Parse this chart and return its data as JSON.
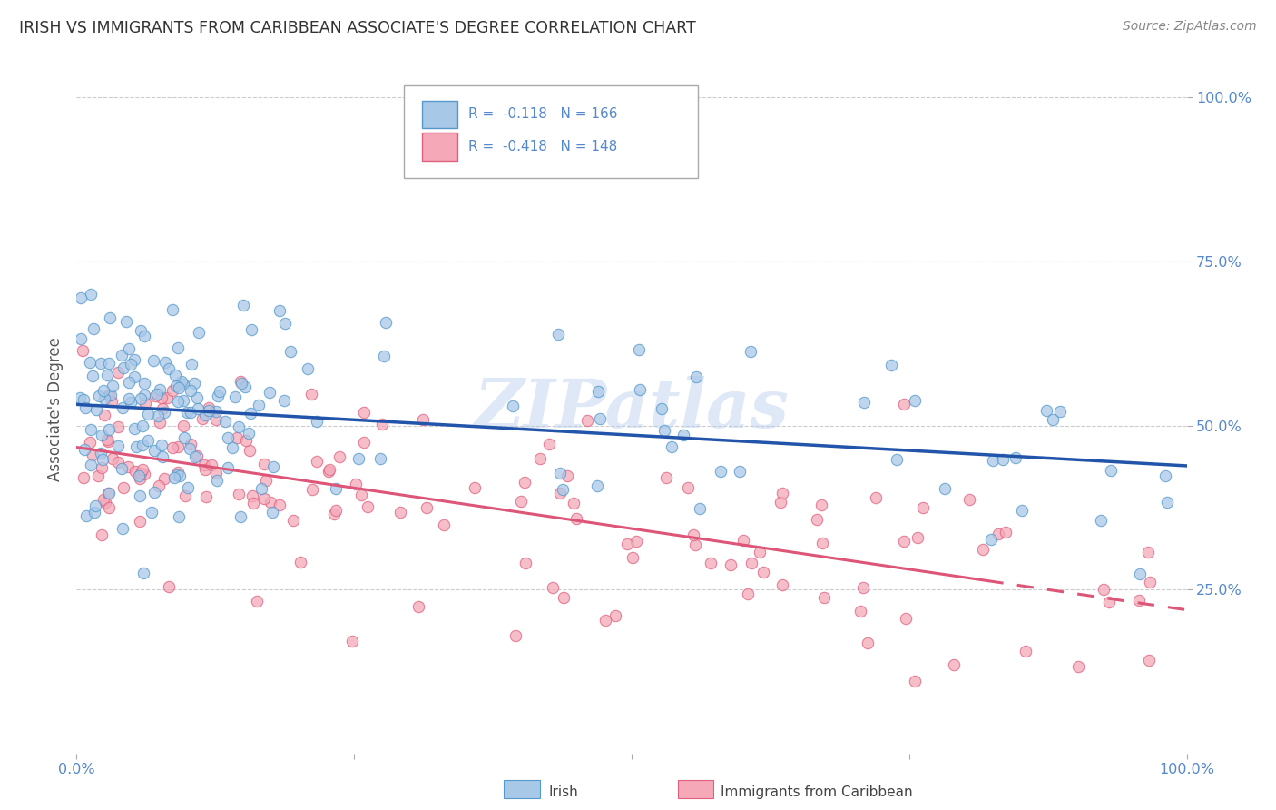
{
  "title": "IRISH VS IMMIGRANTS FROM CARIBBEAN ASSOCIATE'S DEGREE CORRELATION CHART",
  "source": "Source: ZipAtlas.com",
  "ylabel": "Associate's Degree",
  "watermark": "ZIPatlas",
  "blue_R": "-0.118",
  "blue_N": "166",
  "pink_R": "-0.418",
  "pink_N": "148",
  "blue_scatter_color": "#a8c8e8",
  "blue_edge_color": "#5599cc",
  "pink_scatter_color": "#f4a8b8",
  "pink_edge_color": "#e06080",
  "blue_line_color": "#2255aa",
  "pink_line_color": "#dd5577",
  "grid_color": "#cccccc",
  "bg_color": "#ffffff",
  "tick_color": "#5588cc",
  "title_color": "#333333",
  "source_color": "#888888",
  "ylabel_color": "#555555",
  "legend_label_blue": "Irish",
  "legend_label_pink": "Immigrants from Caribbean",
  "blue_intercept": 0.525,
  "blue_slope": -0.075,
  "pink_intercept": 0.465,
  "pink_slope": -0.22
}
